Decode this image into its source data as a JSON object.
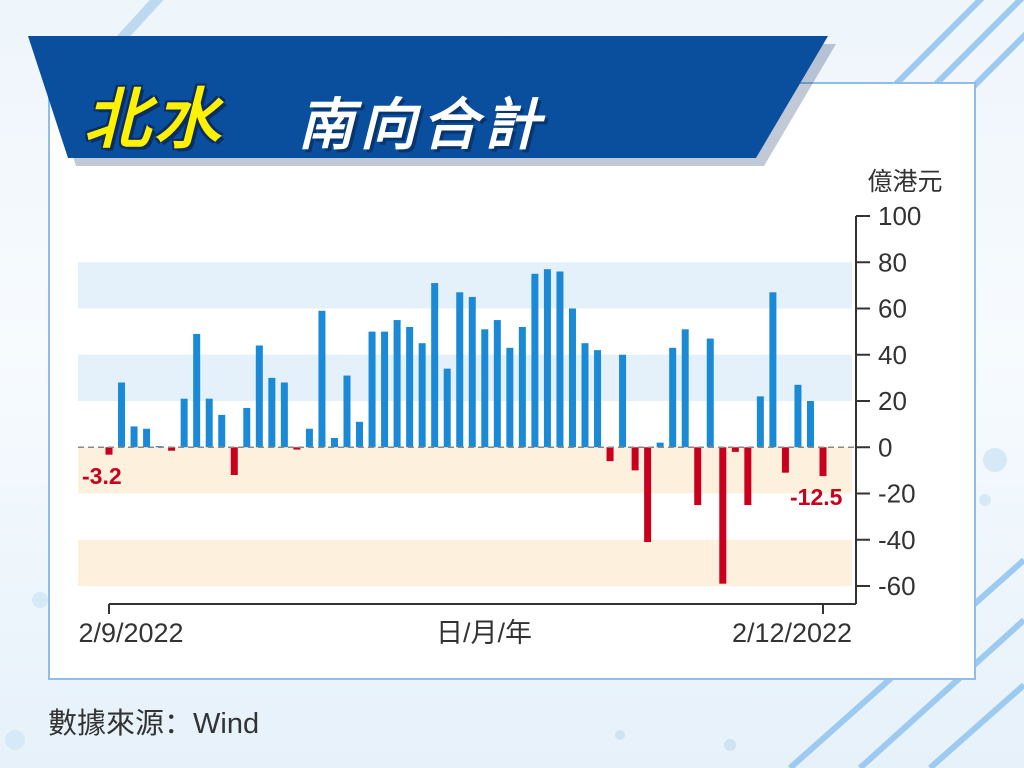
{
  "header": {
    "title_highlight": "北水",
    "title_main": "南向合計"
  },
  "footer": {
    "source": "數據來源：Wind"
  },
  "colors": {
    "positive": "#1a8ad6",
    "negative": "#c8001e",
    "banner": "#0a4f9d",
    "title_highlight": "#fff200"
  },
  "chart_data": {
    "type": "bar",
    "unit_label": "億港元",
    "xlabel": "日/月/年",
    "x_start_label": "2/9/2022",
    "x_end_label": "2/12/2022",
    "ylim": [
      -60,
      100
    ],
    "yticks": [
      100,
      80,
      60,
      40,
      20,
      0,
      -20,
      -40,
      -60
    ],
    "first_value_label": "-3.2",
    "last_value_label": "-12.5",
    "values": [
      -3.2,
      28,
      9,
      8,
      0.5,
      -1.5,
      21,
      49,
      21,
      14,
      -12,
      17,
      44,
      30,
      28,
      -1,
      8,
      59,
      4,
      31,
      11,
      50,
      50,
      55,
      52,
      45,
      71,
      34,
      67,
      65,
      51,
      55,
      43,
      52,
      75,
      77,
      76,
      60,
      45,
      42,
      -6,
      40,
      -10,
      -41,
      2,
      43,
      51,
      -25,
      47,
      -59,
      -2,
      -25,
      22,
      67,
      -11,
      27,
      20,
      -12.5
    ]
  }
}
